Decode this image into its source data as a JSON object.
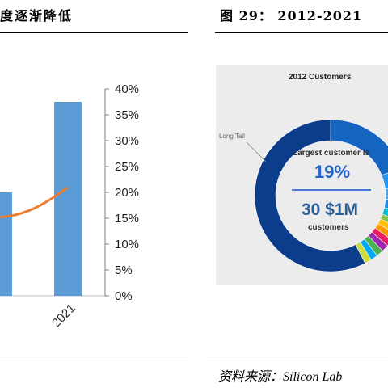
{
  "left_figure": {
    "title": "度逐渐降低"
  },
  "right_figure": {
    "title": "图 29：  2012-2021",
    "source": "资料来源：Silicon Lab"
  },
  "colors": {
    "bar": "#5b9bd5",
    "line": "#ed7d31",
    "donut_dark": "#0b3d8c",
    "donut_mid": "#1565c0",
    "donut_light": "#2196f3",
    "donut_sky": "#42a5f5"
  },
  "chart_data": [
    {
      "type": "bar",
      "categories": [
        "",
        "2021"
      ],
      "series": [
        {
          "type": "bar",
          "values": [
            20,
            37.5
          ]
        },
        {
          "type": "line",
          "values": [
            15.5,
            21
          ]
        }
      ],
      "y_right_ticks": [
        "0%",
        "5%",
        "10%",
        "15%",
        "20%",
        "25%",
        "30%",
        "35%",
        "40%"
      ],
      "ylim": [
        0,
        40
      ],
      "xlabel": "",
      "ylabel": "",
      "grid": false
    },
    {
      "type": "pie",
      "title": "2012 Customers",
      "annotation": "Long Tail",
      "center_text": {
        "line1": "Largest customer is",
        "percent": "19%",
        "count": "30 $1M",
        "sub": "customers"
      },
      "slices": [
        {
          "value": 19,
          "color": "#1565c0"
        },
        {
          "value": 4,
          "color": "#2196f3"
        },
        {
          "value": 3,
          "color": "#42a5f5"
        },
        {
          "value": 2.5,
          "color": "#1e88e5"
        },
        {
          "value": 2,
          "color": "#00bcd4"
        },
        {
          "value": 1.5,
          "color": "#8bc34a"
        },
        {
          "value": 1.5,
          "color": "#ffc107"
        },
        {
          "value": 1.5,
          "color": "#ff9800"
        },
        {
          "value": 1.5,
          "color": "#e91e63"
        },
        {
          "value": 1.5,
          "color": "#9c27b0"
        },
        {
          "value": 1.5,
          "color": "#4caf50"
        },
        {
          "value": 1.5,
          "color": "#03a9f4"
        },
        {
          "value": 1.5,
          "color": "#cddc39"
        },
        {
          "value": 57.5,
          "color": "#0b3d8c"
        }
      ]
    }
  ]
}
